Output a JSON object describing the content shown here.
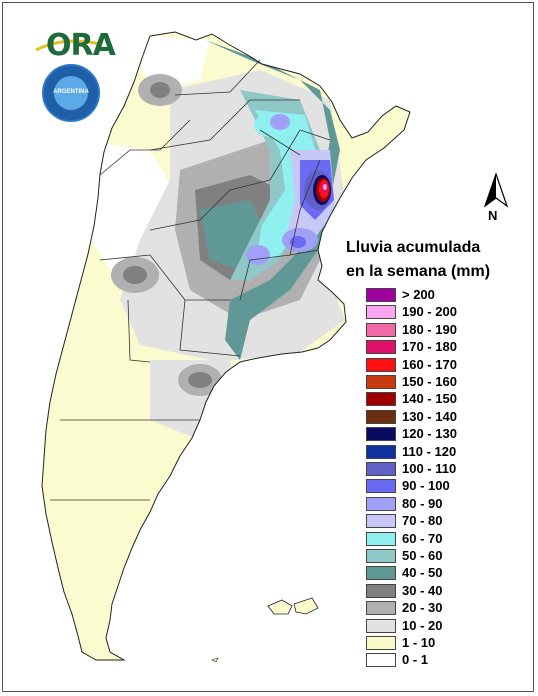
{
  "logo": {
    "text": "ORA",
    "icon": "ora-logo-swoosh"
  },
  "seal": {
    "text": "ARGENTINA",
    "icon": "smn-seal-icon"
  },
  "north_arrow": {
    "label": "N",
    "icon": "north-arrow-icon"
  },
  "legend": {
    "title_line1": "Lluvia acumulada",
    "title_line2": "en la semana (mm)",
    "items": [
      {
        "label": "> 200",
        "color": "#a000a0"
      },
      {
        "label": "190 - 200",
        "color": "#f7a6f0"
      },
      {
        "label": "180 - 190",
        "color": "#f26aa8"
      },
      {
        "label": "170 - 180",
        "color": "#e0106a"
      },
      {
        "label": "160 - 170",
        "color": "#ff1010"
      },
      {
        "label": "150 - 160",
        "color": "#c83a10"
      },
      {
        "label": "140 - 150",
        "color": "#a00000"
      },
      {
        "label": "130 - 140",
        "color": "#6b2e10"
      },
      {
        "label": "120 - 130",
        "color": "#0a0a60"
      },
      {
        "label": "110 - 120",
        "color": "#1030a0"
      },
      {
        "label": "100 - 110",
        "color": "#6060c8"
      },
      {
        "label": "90 - 100",
        "color": "#6a6af2"
      },
      {
        "label": "80 - 90",
        "color": "#a0a0f8"
      },
      {
        "label": "70 - 80",
        "color": "#c8c8f8"
      },
      {
        "label": "60 - 70",
        "color": "#90f0f0"
      },
      {
        "label": "50 - 60",
        "color": "#90c8c8"
      },
      {
        "label": "40 - 50",
        "color": "#609898"
      },
      {
        "label": "30 - 40",
        "color": "#808080"
      },
      {
        "label": "20 - 30",
        "color": "#b0b0b0"
      },
      {
        "label": "10 - 20",
        "color": "#e2e2e2"
      },
      {
        "label": "1 - 10",
        "color": "#fafac8"
      },
      {
        "label": "0 - 1",
        "color": "#ffffff"
      }
    ]
  }
}
